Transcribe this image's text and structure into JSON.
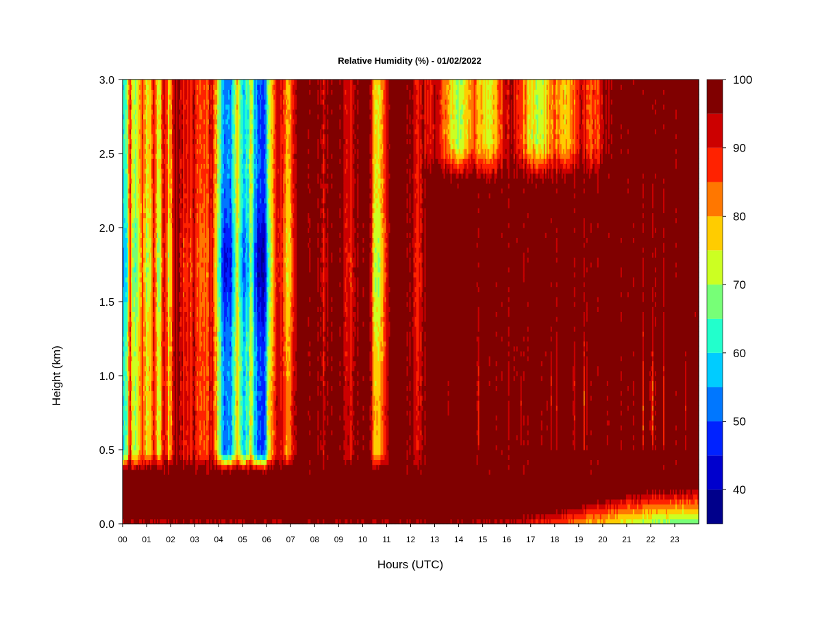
{
  "chart_data": {
    "type": "heatmap",
    "title": "Relative Humidity (%) - 01/02/2022",
    "xlabel": "Hours (UTC)",
    "ylabel": "Height (km)",
    "xlim": [
      0,
      24
    ],
    "ylim": [
      0,
      3
    ],
    "x_ticks": [
      "00",
      "01",
      "02",
      "03",
      "04",
      "05",
      "06",
      "07",
      "08",
      "09",
      "10",
      "11",
      "12",
      "13",
      "14",
      "15",
      "16",
      "17",
      "18",
      "19",
      "20",
      "21",
      "22",
      "23"
    ],
    "y_ticks": [
      "0.0",
      "0.5",
      "1.0",
      "1.5",
      "2.0",
      "2.5",
      "3.0"
    ],
    "colorbar": {
      "levels": [
        35,
        40,
        45,
        50,
        55,
        60,
        65,
        70,
        75,
        80,
        85,
        90,
        95,
        100
      ],
      "colors": [
        "#00008B",
        "#0000CD",
        "#0022FF",
        "#0077FF",
        "#00CCFF",
        "#22FFCC",
        "#77FF77",
        "#CCFF22",
        "#FFCC00",
        "#FF7700",
        "#FF2200",
        "#CC0000",
        "#800000"
      ],
      "tick_labels": [
        "40",
        "50",
        "60",
        "70",
        "80",
        "90",
        "100"
      ]
    },
    "grid": false,
    "description_note": "",
    "features": [
      {
        "feature": "saturated surface layer",
        "hours": [
          0,
          24
        ],
        "height_km": [
          0,
          0.35
        ],
        "rh": 100
      },
      {
        "feature": "dry column",
        "hours": [
          0,
          0.15
        ],
        "height_km": [
          1.1,
          2.3
        ],
        "rh": 50
      },
      {
        "feature": "dry column",
        "hours": [
          3.9,
          6.5
        ],
        "height_km": [
          0.45,
          3.0
        ],
        "rh": 45
      },
      {
        "feature": "moist column",
        "hours": [
          10.3,
          11.0
        ],
        "height_km": [
          0.4,
          3.0
        ],
        "rh": 75
      },
      {
        "feature": "drier upper layer",
        "hours": [
          13.0,
          20.0
        ],
        "height_km": [
          2.3,
          3.0
        ],
        "rh": 70
      },
      {
        "feature": "slightly drier near surface",
        "hours": [
          21.5,
          24
        ],
        "height_km": [
          0,
          0.2
        ],
        "rh": 80
      }
    ]
  }
}
